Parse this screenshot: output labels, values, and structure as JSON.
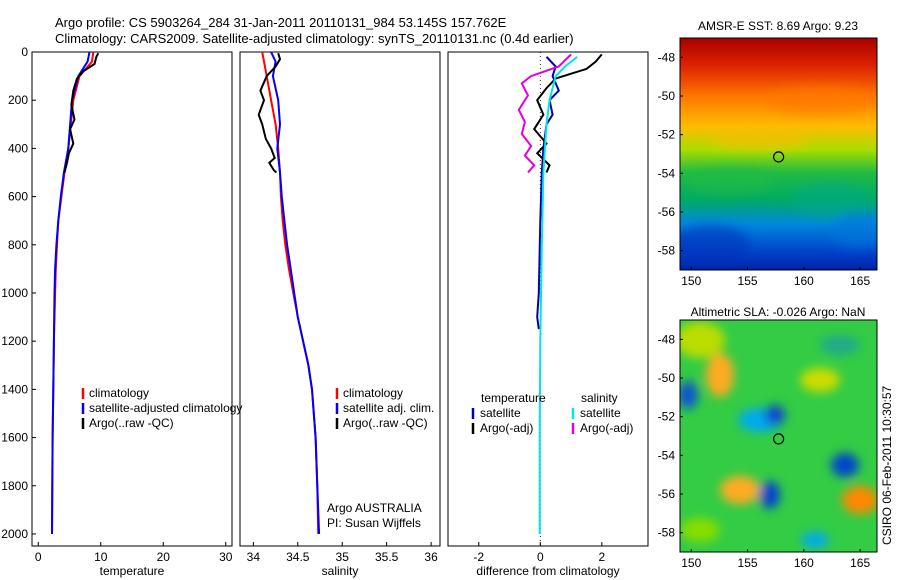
{
  "header": {
    "line1": "Argo profile: CS 5903264_284 31-Jan-2011 20110131_984 53.145S 157.762E",
    "line2": "Climatology: CARS2009. Satellite-adjusted climatology: synTS_20110131.nc (0.4d earlier)"
  },
  "footer_stamp": "CSIRO 06-Feb-2011 10:30:57",
  "chart_data": [
    {
      "id": "temperature",
      "type": "line",
      "xlabel": "temperature",
      "ylabel": "",
      "xlim": [
        -1,
        31
      ],
      "ylim": [
        2050,
        0
      ],
      "xticks": [
        0,
        10,
        20,
        30
      ],
      "yticks": [
        0,
        200,
        400,
        600,
        800,
        1000,
        1200,
        1400,
        1600,
        1800,
        2000
      ],
      "legend": [
        "climatology",
        "satellite-adjusted climatology",
        "Argo(..raw -QC)"
      ],
      "annotations": [],
      "series": [
        {
          "name": "climatology",
          "color": "#ff0000",
          "x": [
            8.8,
            8.6,
            6.6,
            5.6,
            4.8,
            4.2,
            3.7,
            3.2,
            3.0,
            2.8,
            2.7,
            2.6,
            2.5,
            2.4,
            2.3,
            2.2
          ],
          "y": [
            0,
            40,
            100,
            200,
            400,
            500,
            600,
            700,
            800,
            900,
            1000,
            1100,
            1200,
            1400,
            1600,
            2000
          ]
        },
        {
          "name": "satellite-adjusted climatology",
          "color": "#0000ff",
          "x": [
            8.2,
            7.9,
            6.4,
            5.4,
            4.8,
            4.1,
            3.6,
            3.2,
            2.9,
            2.7,
            2.6,
            2.5,
            2.4,
            2.3,
            2.2
          ],
          "y": [
            0,
            40,
            100,
            200,
            400,
            500,
            600,
            700,
            800,
            900,
            1000,
            1200,
            1400,
            1600,
            2000
          ]
        },
        {
          "name": "Argo(..raw -QC)",
          "color": "#000000",
          "x": [
            9.6,
            9.3,
            9.0,
            7.2,
            6.2,
            5.6,
            5.3,
            5.8,
            5.1,
            5.6,
            4.9,
            4.6,
            4.2
          ],
          "y": [
            5,
            20,
            50,
            80,
            110,
            160,
            220,
            280,
            320,
            380,
            420,
            460,
            500
          ]
        }
      ]
    },
    {
      "id": "salinity",
      "type": "line",
      "xlabel": "salinity",
      "ylabel": "",
      "xlim": [
        33.85,
        36.1
      ],
      "ylim": [
        2050,
        0
      ],
      "xticks": [
        34,
        34.5,
        35,
        35.5,
        36
      ],
      "yticks": [],
      "legend": [
        "climatology",
        "satellite adj. clim.",
        "Argo(..raw -QC)"
      ],
      "annotations": [
        "Argo AUSTRALIA",
        "PI: Susan Wijffels"
      ],
      "series": [
        {
          "name": "climatology",
          "color": "#ff0000",
          "x": [
            34.1,
            34.12,
            34.15,
            34.2,
            34.25,
            34.28,
            34.3,
            34.31,
            34.33,
            34.36,
            34.4,
            34.45,
            34.5,
            34.56,
            34.62,
            34.66,
            34.7,
            34.72,
            34.73
          ],
          "y": [
            0,
            40,
            100,
            200,
            300,
            400,
            500,
            600,
            700,
            800,
            900,
            1000,
            1100,
            1200,
            1300,
            1400,
            1600,
            1800,
            2000
          ]
        },
        {
          "name": "satellite adj. clim.",
          "color": "#0000ff",
          "x": [
            34.2,
            34.25,
            34.22,
            34.28,
            34.3,
            34.27,
            34.3,
            34.32,
            34.35,
            34.38,
            34.42,
            34.46,
            34.5,
            34.56,
            34.62,
            34.66,
            34.7,
            34.72,
            34.74
          ],
          "y": [
            0,
            40,
            100,
            200,
            300,
            400,
            500,
            600,
            700,
            800,
            900,
            1000,
            1100,
            1200,
            1300,
            1400,
            1600,
            1800,
            2000
          ]
        },
        {
          "name": "Argo(..raw -QC)",
          "color": "#000000",
          "x": [
            34.28,
            34.3,
            34.25,
            34.15,
            34.08,
            34.12,
            34.06,
            34.1,
            34.14,
            34.2,
            34.24,
            34.18,
            34.23,
            34.26
          ],
          "y": [
            5,
            30,
            60,
            100,
            160,
            200,
            260,
            300,
            360,
            400,
            440,
            460,
            490,
            500
          ]
        }
      ]
    },
    {
      "id": "difference",
      "type": "line",
      "xlabel": "difference from climatology",
      "ylabel": "",
      "xlim": [
        -3,
        3.5
      ],
      "ylim": [
        2050,
        0
      ],
      "xticks": [
        -2,
        0,
        2
      ],
      "yticks": [],
      "legend": [
        "temperature",
        "satellite",
        "Argo(-adj)",
        "salinity",
        "satellite",
        "Argo(-adj)"
      ],
      "annotations": [],
      "series": [
        {
          "name": "temperature satellite",
          "color": "#0000aa",
          "x": [
            0.2,
            0.5,
            0.4,
            0.6,
            0.3,
            0.4,
            0.2,
            0.1,
            0.05,
            0.0,
            -0.05,
            -0.1,
            -0.05
          ],
          "y": [
            20,
            60,
            100,
            160,
            200,
            260,
            300,
            400,
            500,
            700,
            1000,
            1100,
            1150
          ]
        },
        {
          "name": "temperature Argo(-adj)",
          "color": "#000000",
          "x": [
            2.0,
            1.8,
            1.5,
            1.0,
            0.5,
            0.2,
            -0.1,
            0.1,
            -0.2,
            0.2,
            -0.1,
            0.3,
            0.2
          ],
          "y": [
            10,
            40,
            70,
            90,
            110,
            150,
            200,
            260,
            320,
            380,
            420,
            470,
            500
          ]
        },
        {
          "name": "salinity satellite",
          "color": "#00e5e5",
          "x": [
            1.2,
            0.8,
            0.5,
            0.3,
            0.2,
            0.1,
            0.05,
            0.0,
            -0.02,
            -0.02
          ],
          "y": [
            20,
            60,
            100,
            200,
            300,
            500,
            800,
            1200,
            1600,
            2000
          ]
        },
        {
          "name": "salinity Argo(-adj)",
          "color": "#e000e0",
          "x": [
            1.0,
            0.6,
            -0.3,
            -0.6,
            -0.4,
            -0.7,
            -0.5,
            -0.6,
            -0.3,
            -0.5,
            -0.2,
            -0.4
          ],
          "y": [
            10,
            60,
            100,
            130,
            180,
            240,
            290,
            340,
            390,
            430,
            470,
            500
          ]
        }
      ]
    },
    {
      "id": "sst-map",
      "type": "heatmap",
      "title": "AMSR-E SST: 8.69 Argo: 9.23",
      "xlim": [
        149,
        166.5
      ],
      "ylim": [
        -59,
        -47
      ],
      "xticks": [
        150,
        155,
        160,
        165
      ],
      "yticks": [
        -48,
        -50,
        -52,
        -54,
        -56,
        -58
      ],
      "marker": {
        "lon": 157.76,
        "lat": -53.15
      }
    },
    {
      "id": "sla-map",
      "type": "heatmap",
      "title": "Altimetric SLA: -0.026 Argo: NaN",
      "xlim": [
        149,
        166.5
      ],
      "ylim": [
        -59,
        -47
      ],
      "xticks": [
        150,
        155,
        160,
        165
      ],
      "yticks": [
        -48,
        -50,
        -52,
        -54,
        -56,
        -58
      ],
      "marker": {
        "lon": 157.76,
        "lat": -53.15
      }
    }
  ]
}
